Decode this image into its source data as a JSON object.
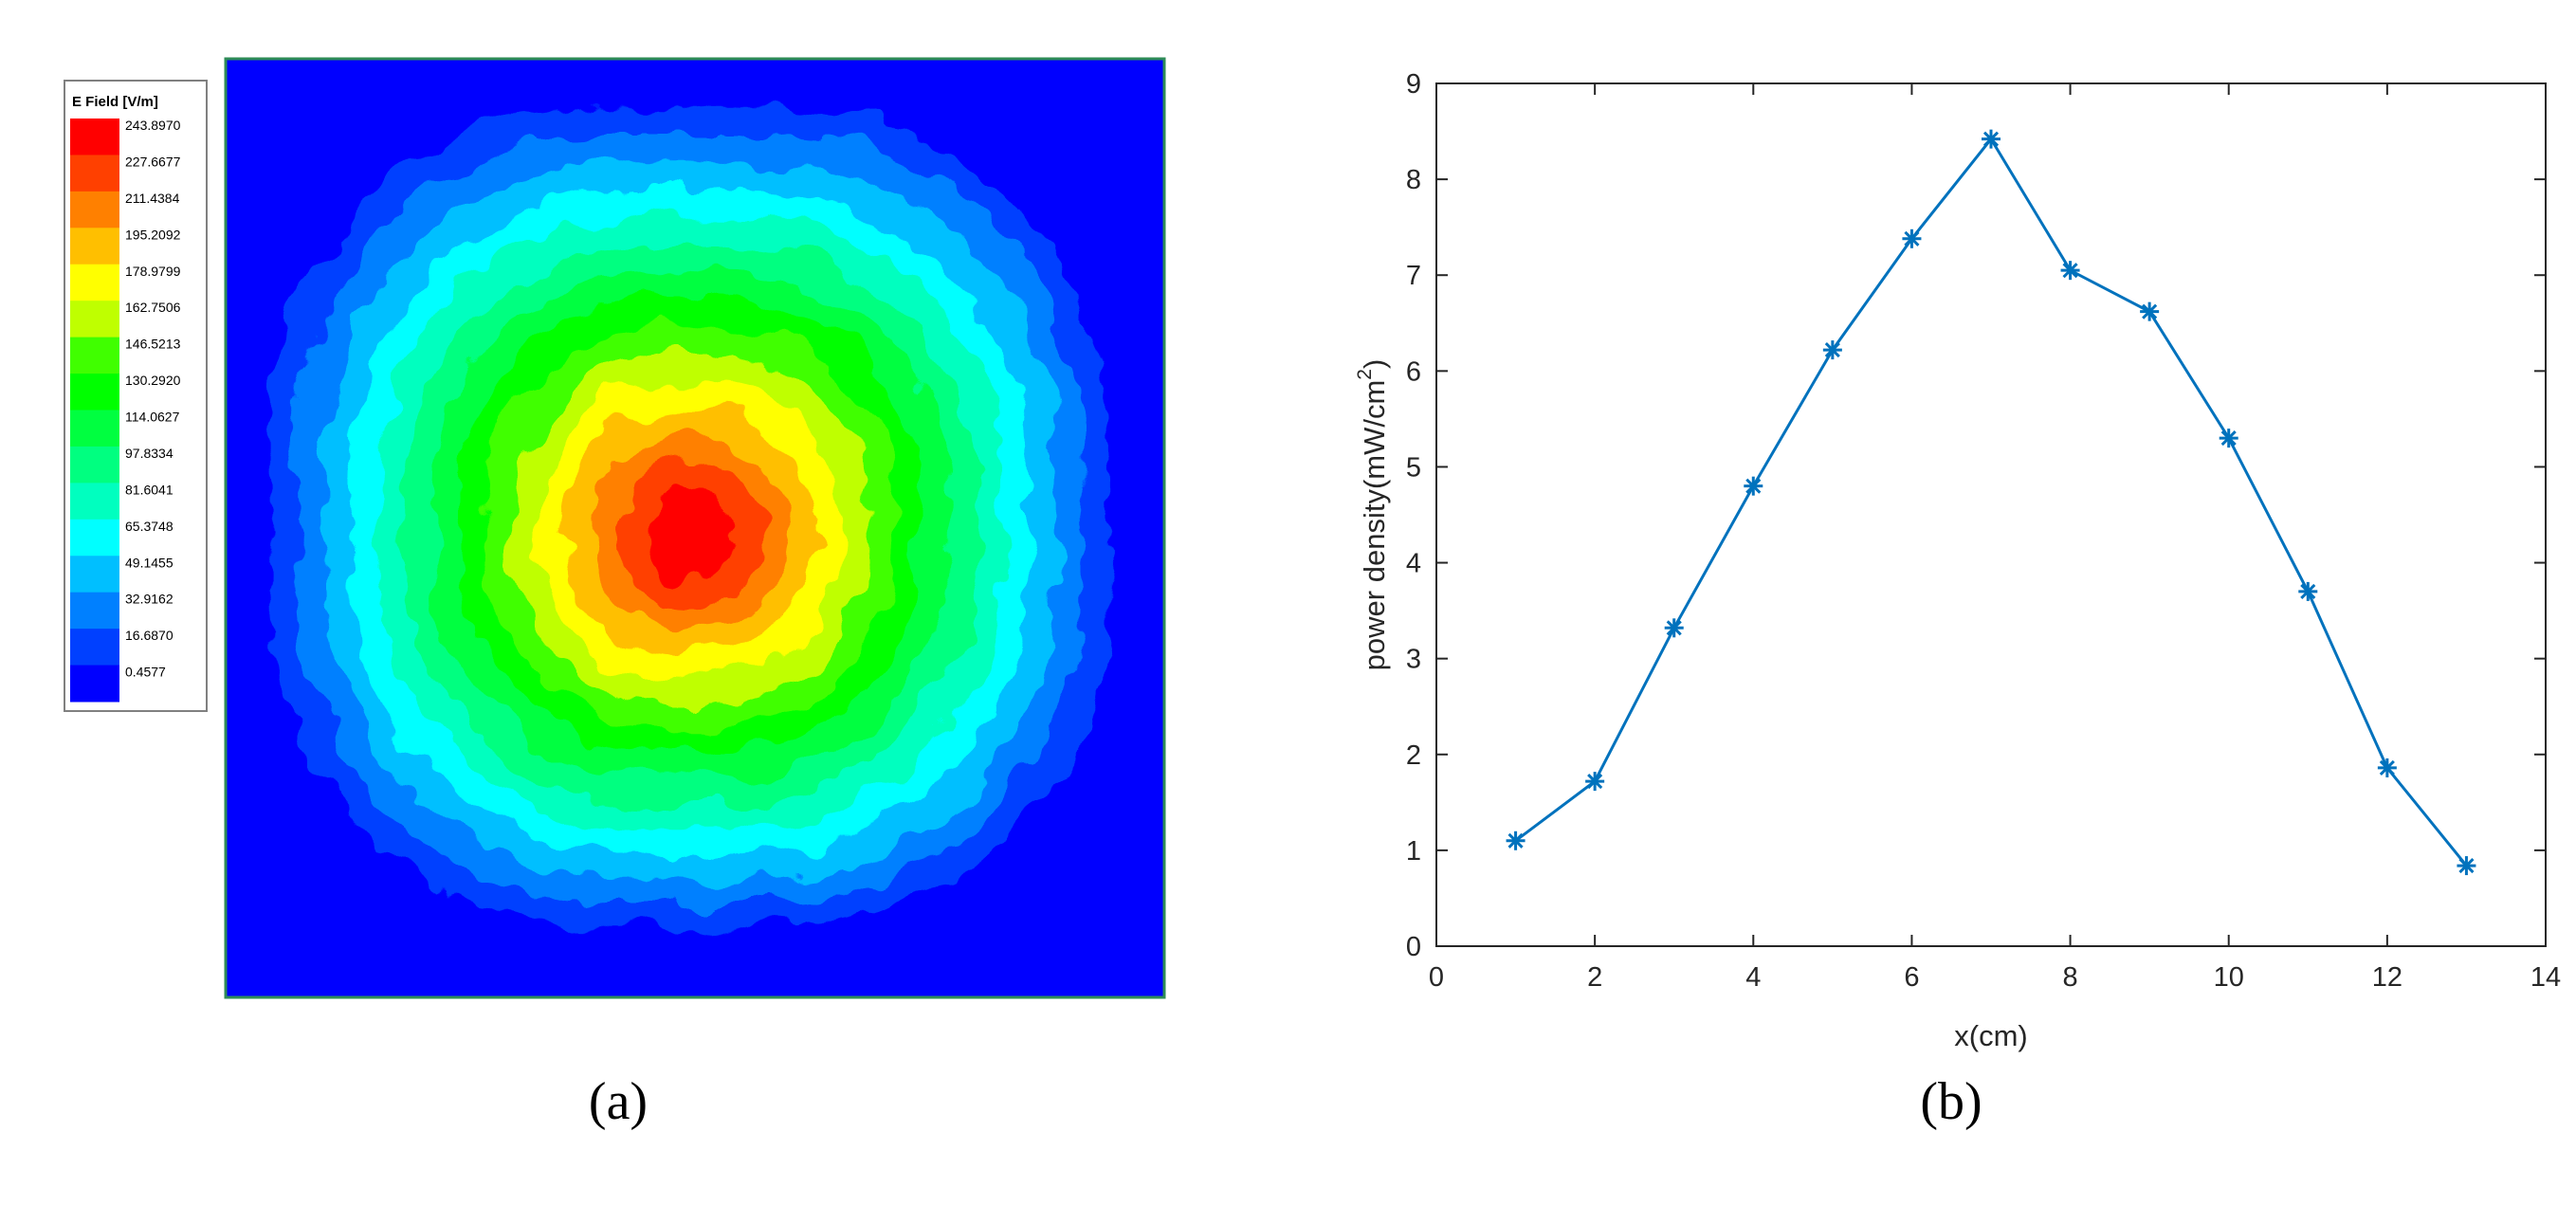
{
  "panels": {
    "a": {
      "label": "(a)"
    },
    "b": {
      "label": "(b)"
    }
  },
  "chart_data": [
    {
      "type": "heatmap",
      "legend": {
        "title": "E Field [V/m]",
        "levels": [
          {
            "value": "243.8970",
            "color": "#ff0000"
          },
          {
            "value": "227.6677",
            "color": "#ff4000"
          },
          {
            "value": "211.4384",
            "color": "#ff8000"
          },
          {
            "value": "195.2092",
            "color": "#ffbf00"
          },
          {
            "value": "178.9799",
            "color": "#ffff00"
          },
          {
            "value": "162.7506",
            "color": "#bfff00"
          },
          {
            "value": "146.5213",
            "color": "#40ff00"
          },
          {
            "value": "130.2920",
            "color": "#00ff00"
          },
          {
            "value": "114.0627",
            "color": "#00ff40"
          },
          {
            "value": "97.8334",
            "color": "#00ff80"
          },
          {
            "value": "81.6041",
            "color": "#00ffbf"
          },
          {
            "value": "65.3748",
            "color": "#00ffff"
          },
          {
            "value": "49.1455",
            "color": "#00bfff"
          },
          {
            "value": "32.9162",
            "color": "#0080ff"
          },
          {
            "value": "16.6870",
            "color": "#0040ff"
          },
          {
            "value": "0.4577",
            "color": "#0000ff"
          }
        ]
      },
      "peak_position": "center",
      "background_color": "#0000ff"
    },
    {
      "type": "line",
      "marker": "asterisk",
      "line_color": "#0072bd",
      "x": [
        1,
        2,
        3,
        4,
        5,
        6,
        7,
        8,
        9,
        10,
        11,
        12,
        13
      ],
      "y": [
        1.1,
        1.72,
        3.32,
        4.8,
        6.22,
        7.38,
        8.42,
        7.05,
        6.62,
        5.3,
        3.7,
        1.86,
        0.84
      ],
      "xlabel": "x(cm)",
      "ylabel": "power density(mW/cm",
      "ylabel_superscript": "2",
      "ylabel_suffix": ")",
      "xlim": [
        0,
        14
      ],
      "ylim": [
        0,
        9
      ],
      "xticks": [
        "0",
        "2",
        "4",
        "6",
        "8",
        "10",
        "12",
        "14"
      ],
      "yticks": [
        "0",
        "1",
        "2",
        "3",
        "4",
        "5",
        "6",
        "7",
        "8",
        "9"
      ],
      "grid": false
    }
  ]
}
